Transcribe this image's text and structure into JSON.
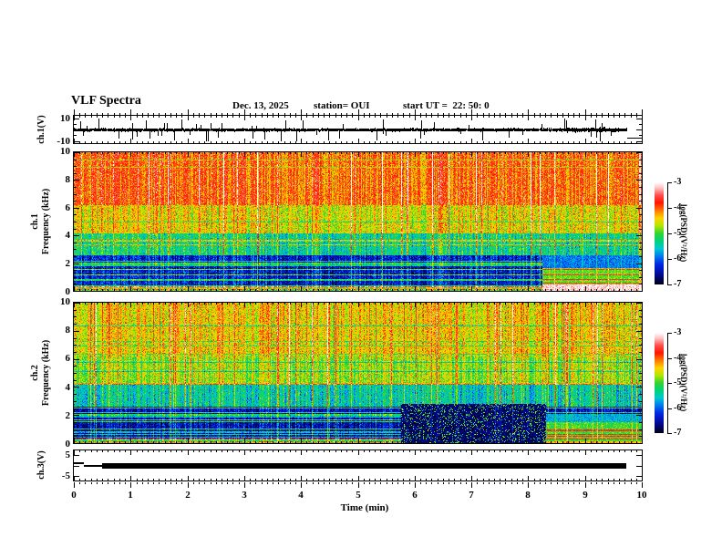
{
  "header": {
    "title": "VLF Spectra",
    "date": "Dec. 13, 2025",
    "station": "station= OUI",
    "start_ut": "start UT =  22: 50: 0"
  },
  "time_axis": {
    "label": "Time (min)",
    "min": 0,
    "max": 10,
    "major_ticks": [
      0,
      1,
      2,
      3,
      4,
      5,
      6,
      7,
      8,
      9,
      10
    ],
    "minor_step": 0.1
  },
  "colormap": {
    "label": "log(PSD)(V²/Hz)",
    "ticks": [
      -3,
      -4,
      -5,
      -6,
      -7
    ],
    "range": [
      -7,
      -3
    ],
    "stops": [
      {
        "v": -7.0,
        "c": "#000014"
      },
      {
        "v": -6.6,
        "c": "#000896"
      },
      {
        "v": -6.2,
        "c": "#0028e6"
      },
      {
        "v": -5.9,
        "c": "#0078f0"
      },
      {
        "v": -5.6,
        "c": "#00c8d2"
      },
      {
        "v": -5.3,
        "c": "#00d278"
      },
      {
        "v": -5.0,
        "c": "#32d232"
      },
      {
        "v": -4.7,
        "c": "#b4e600"
      },
      {
        "v": -4.4,
        "c": "#ffd200"
      },
      {
        "v": -4.1,
        "c": "#ff7800"
      },
      {
        "v": -3.8,
        "c": "#ff1400"
      },
      {
        "v": -3.5,
        "c": "#ff5050"
      },
      {
        "v": -3.2,
        "c": "#ffc8c8"
      },
      {
        "v": -3.0,
        "c": "#ffffff"
      }
    ]
  },
  "chart_data": [
    {
      "id": "ch1-waveform",
      "type": "line",
      "ylabel": "ch.1(V)",
      "ylim": [
        -12,
        12
      ],
      "yticks": [
        10,
        -10
      ],
      "signal": {
        "baseline_v": 0,
        "noise_amp_v": 1.1,
        "spike_prob": 0.05,
        "spike_max_v": 10,
        "high_activity_window_min": [
          8.3,
          9.65
        ],
        "dropout_start_min": 9.73,
        "dropout_level_v": -7.3,
        "seed": 20251213
      }
    },
    {
      "id": "ch1-spectrogram",
      "type": "heatmap",
      "ylabel_lines": [
        "ch.1",
        "Frequency (kHz)"
      ],
      "flim_khz": [
        0,
        10
      ],
      "yticks": [
        10,
        8,
        6,
        4,
        2,
        0
      ],
      "value_range_log_psd": [
        -7,
        -3
      ],
      "seed": 101,
      "sferic_prob": 0.05,
      "hline_prob": 0.32,
      "bands": [
        {
          "f": [
            6.2,
            10
          ],
          "v": -4.05
        },
        {
          "f": [
            4.2,
            6.2
          ],
          "v": -4.55
        },
        {
          "f": [
            2.6,
            4.2
          ],
          "v": -5.35
        },
        {
          "f": [
            0.35,
            2.6
          ],
          "v": -6.35
        },
        {
          "f": [
            0,
            0.35
          ],
          "v": -4.95
        }
      ],
      "events": [
        {
          "t": [
            8.25,
            10
          ],
          "f": [
            1.7,
            2.6
          ],
          "v": -5.9
        },
        {
          "t": [
            8.25,
            10
          ],
          "f": [
            0.5,
            1.7
          ],
          "v": -4.9,
          "striped": true,
          "red_v": -3.7
        },
        {
          "t": [
            8.25,
            10
          ],
          "f": [
            0,
            0.5
          ],
          "v": -3.15
        }
      ]
    },
    {
      "id": "ch2-spectrogram",
      "type": "heatmap",
      "ylabel_lines": [
        "ch.2",
        "Frequency (kHz)"
      ],
      "flim_khz": [
        0,
        10
      ],
      "yticks": [
        10,
        8,
        6,
        4,
        2,
        0
      ],
      "value_range_log_psd": [
        -7,
        -3
      ],
      "seed": 202,
      "sferic_prob": 0.045,
      "hline_prob": 0.32,
      "bands": [
        {
          "f": [
            6.2,
            10
          ],
          "v": -4.45
        },
        {
          "f": [
            4.2,
            6.2
          ],
          "v": -4.75
        },
        {
          "f": [
            2.6,
            4.2
          ],
          "v": -5.45
        },
        {
          "f": [
            0.35,
            2.6
          ],
          "v": -6.45
        },
        {
          "f": [
            0,
            0.35
          ],
          "v": -5.05
        }
      ],
      "events": [
        {
          "t": [
            5.75,
            8.3
          ],
          "f": [
            0,
            2.8
          ],
          "v": -6.75,
          "speckle": 0.16
        },
        {
          "t": [
            8.3,
            10
          ],
          "f": [
            1.5,
            2.1
          ],
          "v": -5.7
        },
        {
          "t": [
            8.3,
            10
          ],
          "f": [
            0.15,
            1.5
          ],
          "v": -5.0,
          "striped": true,
          "red_v": -3.8
        },
        {
          "t": [
            8.3,
            10
          ],
          "f": [
            0,
            0.15
          ],
          "v": -4.3
        }
      ]
    },
    {
      "id": "ch3-level",
      "type": "line",
      "ylabel": "ch.3(V)",
      "ylim": [
        -7,
        7
      ],
      "yticks": [
        5,
        -5
      ],
      "segments": [
        {
          "t": [
            0,
            0.17
          ],
          "v": 0.9,
          "lw": 2
        },
        {
          "t": [
            0.17,
            0.5
          ],
          "v": -0.4,
          "lw": 2
        },
        {
          "t": [
            0.5,
            9.72
          ],
          "v": -0.2,
          "lw": 6
        }
      ]
    }
  ]
}
